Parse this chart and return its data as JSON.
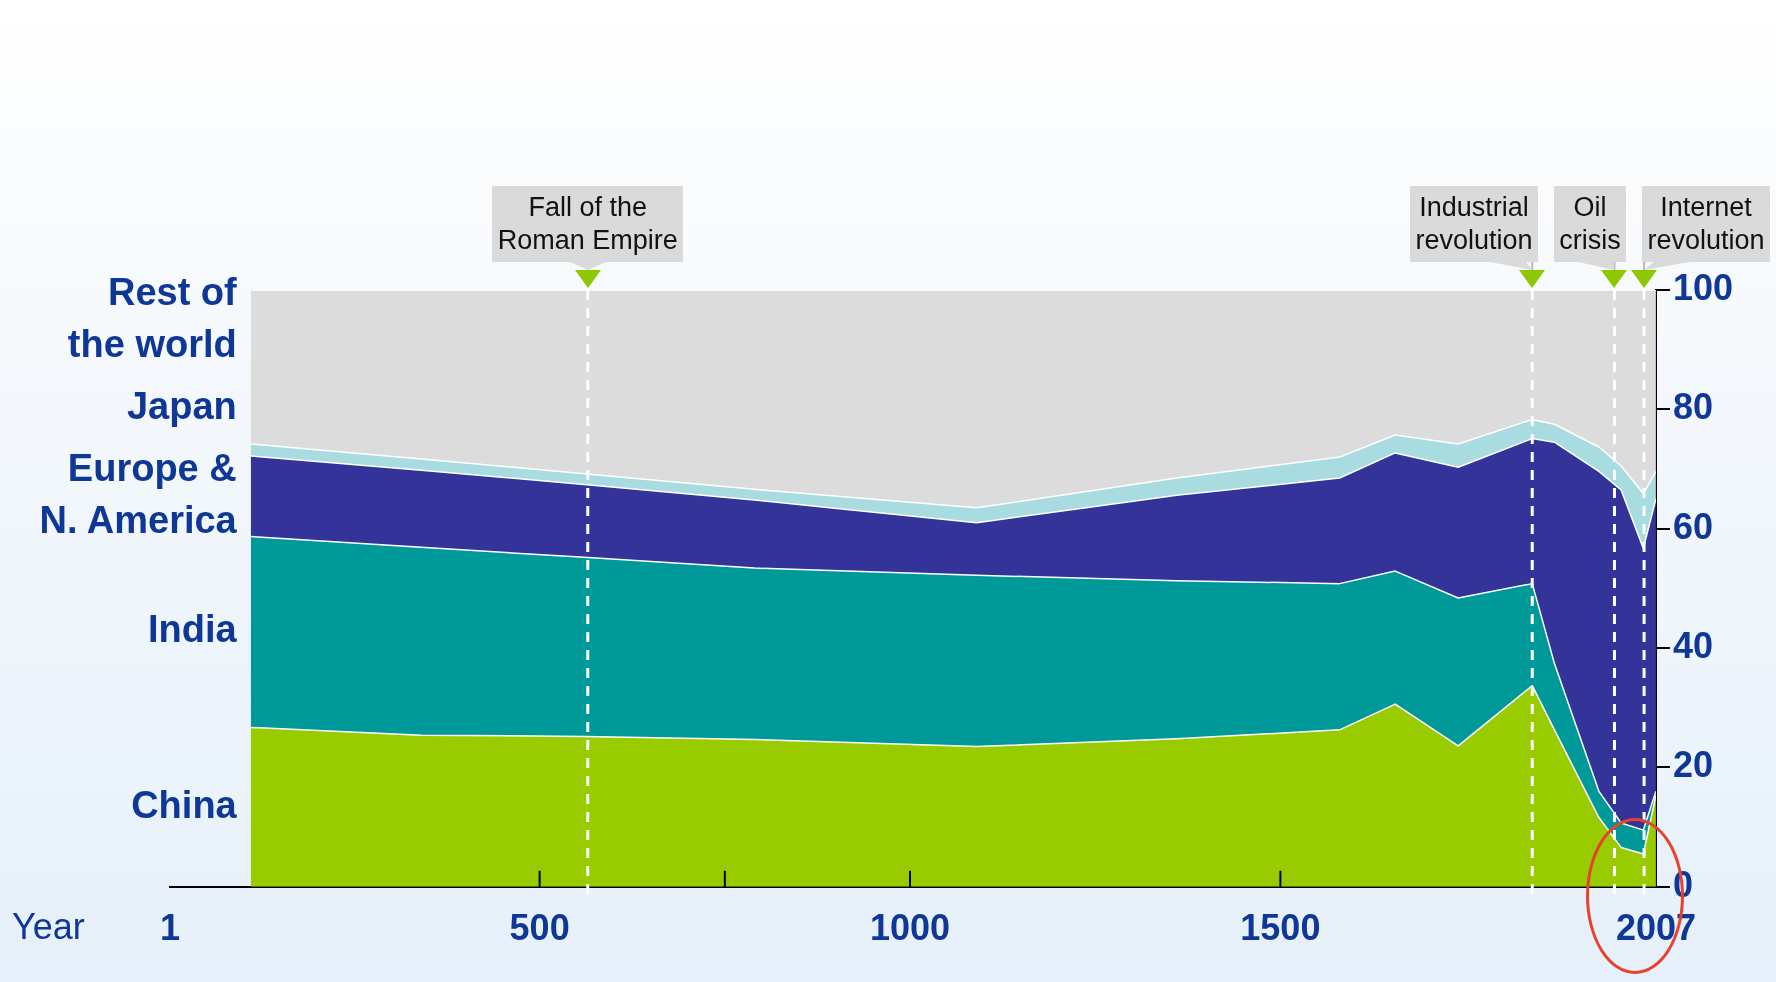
{
  "chart_data": {
    "type": "area",
    "stacked": true,
    "xlabel": "Year",
    "x": [
      110,
      340,
      560,
      790,
      1090,
      1360,
      1580,
      1655,
      1740,
      1840,
      1870,
      1930,
      1960,
      1990,
      2007
    ],
    "series": [
      {
        "name": "China",
        "color": "#99cc00",
        "values": [
          26.7,
          25.4,
          25.2,
          24.7,
          23.5,
          24.8,
          26.3,
          30.6,
          23.6,
          33.7,
          26.3,
          11.6,
          6.6,
          5.5,
          15.3
        ]
      },
      {
        "name": "India",
        "color": "#009999",
        "values": [
          32.0,
          31.5,
          30.0,
          28.7,
          28.7,
          26.5,
          24.5,
          22.3,
          24.8,
          17.1,
          11.1,
          4.4,
          4.1,
          4.0,
          0.7
        ]
      },
      {
        "name": "Europe & N. America",
        "color": "#333399",
        "values": [
          13.5,
          12.9,
          12.2,
          11.4,
          8.8,
          14.3,
          17.7,
          19.8,
          21.9,
          24.3,
          37.1,
          53.6,
          55.8,
          47.2,
          49.0
        ]
      },
      {
        "name": "Japan",
        "color": "#a8dce0",
        "values": [
          2.0,
          1.9,
          1.8,
          1.8,
          2.5,
          2.9,
          3.5,
          3.0,
          3.9,
          3.2,
          3.0,
          4.1,
          4.0,
          9.2,
          4.6
        ]
      },
      {
        "name": "Rest of the world",
        "color": "#dcdcdc",
        "values": [
          25.8,
          28.3,
          30.8,
          33.4,
          36.5,
          31.5,
          28.0,
          24.3,
          25.8,
          21.7,
          22.5,
          26.3,
          29.5,
          34.1,
          30.4
        ]
      }
    ],
    "xlim": [
      1,
      2007
    ],
    "xticks": [
      1,
      500,
      {
        "value": 750,
        "label": null
      },
      1000,
      1500,
      2007
    ],
    "ylim": [
      0,
      100
    ],
    "yticks": [
      0,
      20,
      40,
      60,
      80,
      100
    ],
    "ref_lines": [
      {
        "axis": "x",
        "value": 565,
        "label": "Fall of the Roman Empire",
        "color": "#ffffff",
        "line_style": "dashed"
      },
      {
        "axis": "x",
        "value": 1840,
        "label": "Industrial revolution",
        "color": "#ffffff",
        "line_style": "dashed"
      },
      {
        "axis": "x",
        "value": 1951,
        "label": "Oil crisis",
        "color": "#ffffff",
        "line_style": "dashed"
      },
      {
        "axis": "x",
        "value": 1991,
        "label": "Internet revolution",
        "color": "#ffffff",
        "line_style": "dashed"
      }
    ],
    "legend": "left",
    "grid": false
  }
}
